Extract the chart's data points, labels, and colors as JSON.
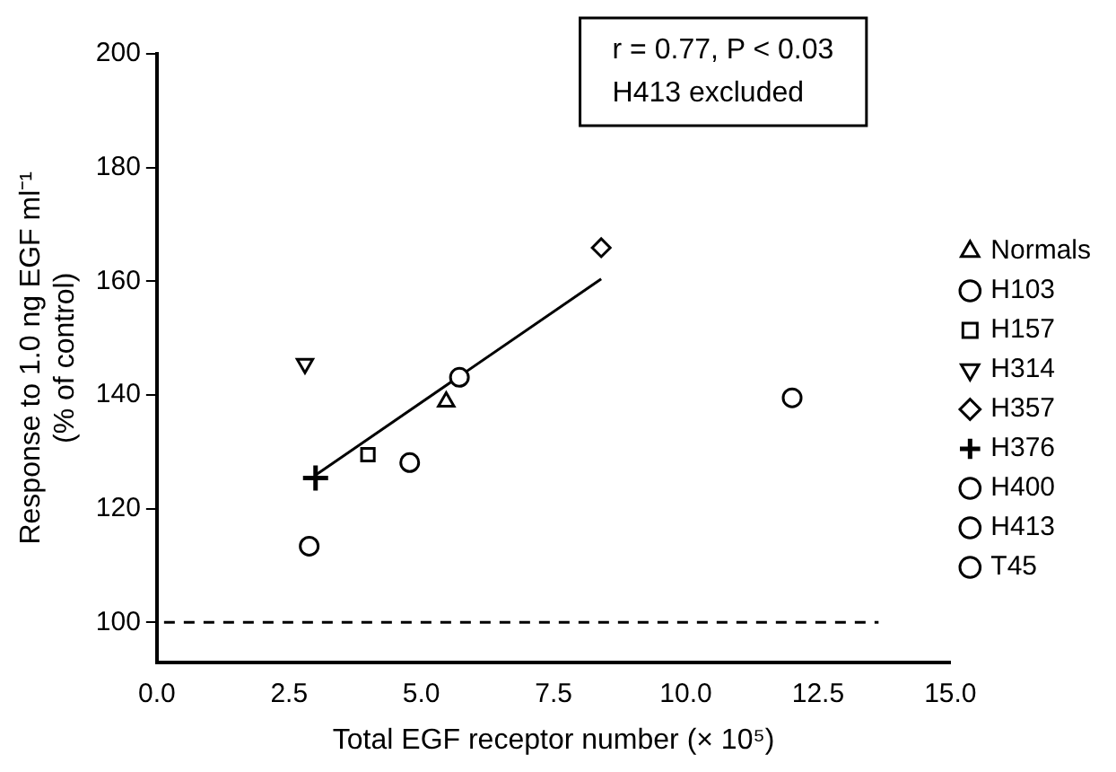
{
  "chart_data": {
    "type": "scatter",
    "xlabel": "Total EGF receptor number (× 10⁵)",
    "ylabel": "Response to 1.0 ng EGF ml⁻¹\n(% of control)",
    "annotations": [
      "r = 0.77, P < 0.03",
      "H413 excluded"
    ],
    "xlim": [
      0,
      15
    ],
    "xticks": [
      {
        "value": 0,
        "label": "0.0"
      },
      {
        "value": 2.5,
        "label": "2.5"
      },
      {
        "value": 5,
        "label": "5.0"
      },
      {
        "value": 7.5,
        "label": "7.5"
      },
      {
        "value": 10,
        "label": "10.0"
      },
      {
        "value": 12.5,
        "label": "12.5"
      },
      {
        "value": 15,
        "label": "15.0"
      }
    ],
    "ylim": [
      93,
      200
    ],
    "yticks": [
      100,
      120,
      140,
      160,
      180,
      200
    ],
    "grid": false,
    "legend": "right",
    "ref_lines": [
      {
        "axis": "y",
        "value": 100,
        "line_style": "dashed",
        "color": "#000000"
      }
    ],
    "series": [
      {
        "name": "Normals",
        "color": "#000000",
        "marker": "triangle",
        "x": [
          5.47
        ],
        "values": [
          138.8
        ]
      },
      {
        "name": "H103",
        "color": "#000000",
        "marker": "circle",
        "x": [
          5.72
        ],
        "values": [
          143.1
        ]
      },
      {
        "name": "H157",
        "color": "#000000",
        "marker": "square",
        "x": [
          3.99
        ],
        "values": [
          129.5
        ]
      },
      {
        "name": "H314",
        "color": "#000000",
        "marker": "triangle-down",
        "x": [
          2.8
        ],
        "values": [
          145.5
        ]
      },
      {
        "name": "H357",
        "color": "#000000",
        "marker": "diamond",
        "x": [
          8.4
        ],
        "values": [
          165.9
        ]
      },
      {
        "name": "H376",
        "color": "#000000",
        "marker": "cross",
        "x": [
          3.0
        ],
        "values": [
          125.4
        ]
      },
      {
        "name": "H400",
        "color": "#000000",
        "marker": "circle",
        "x": [
          4.78
        ],
        "values": [
          128.1
        ]
      },
      {
        "name": "H413",
        "color": "#000000",
        "marker": "circle",
        "x": [
          12.01
        ],
        "values": [
          139.5
        ]
      },
      {
        "name": "T45",
        "color": "#000000",
        "marker": "circle",
        "x": [
          2.88
        ],
        "values": [
          113.4
        ]
      },
      {
        "type": "line",
        "color": "#000000",
        "marker": "none",
        "line_style": "solid",
        "x": [
          3.0,
          8.4
        ],
        "values": [
          125.9,
          160.4
        ]
      }
    ]
  }
}
